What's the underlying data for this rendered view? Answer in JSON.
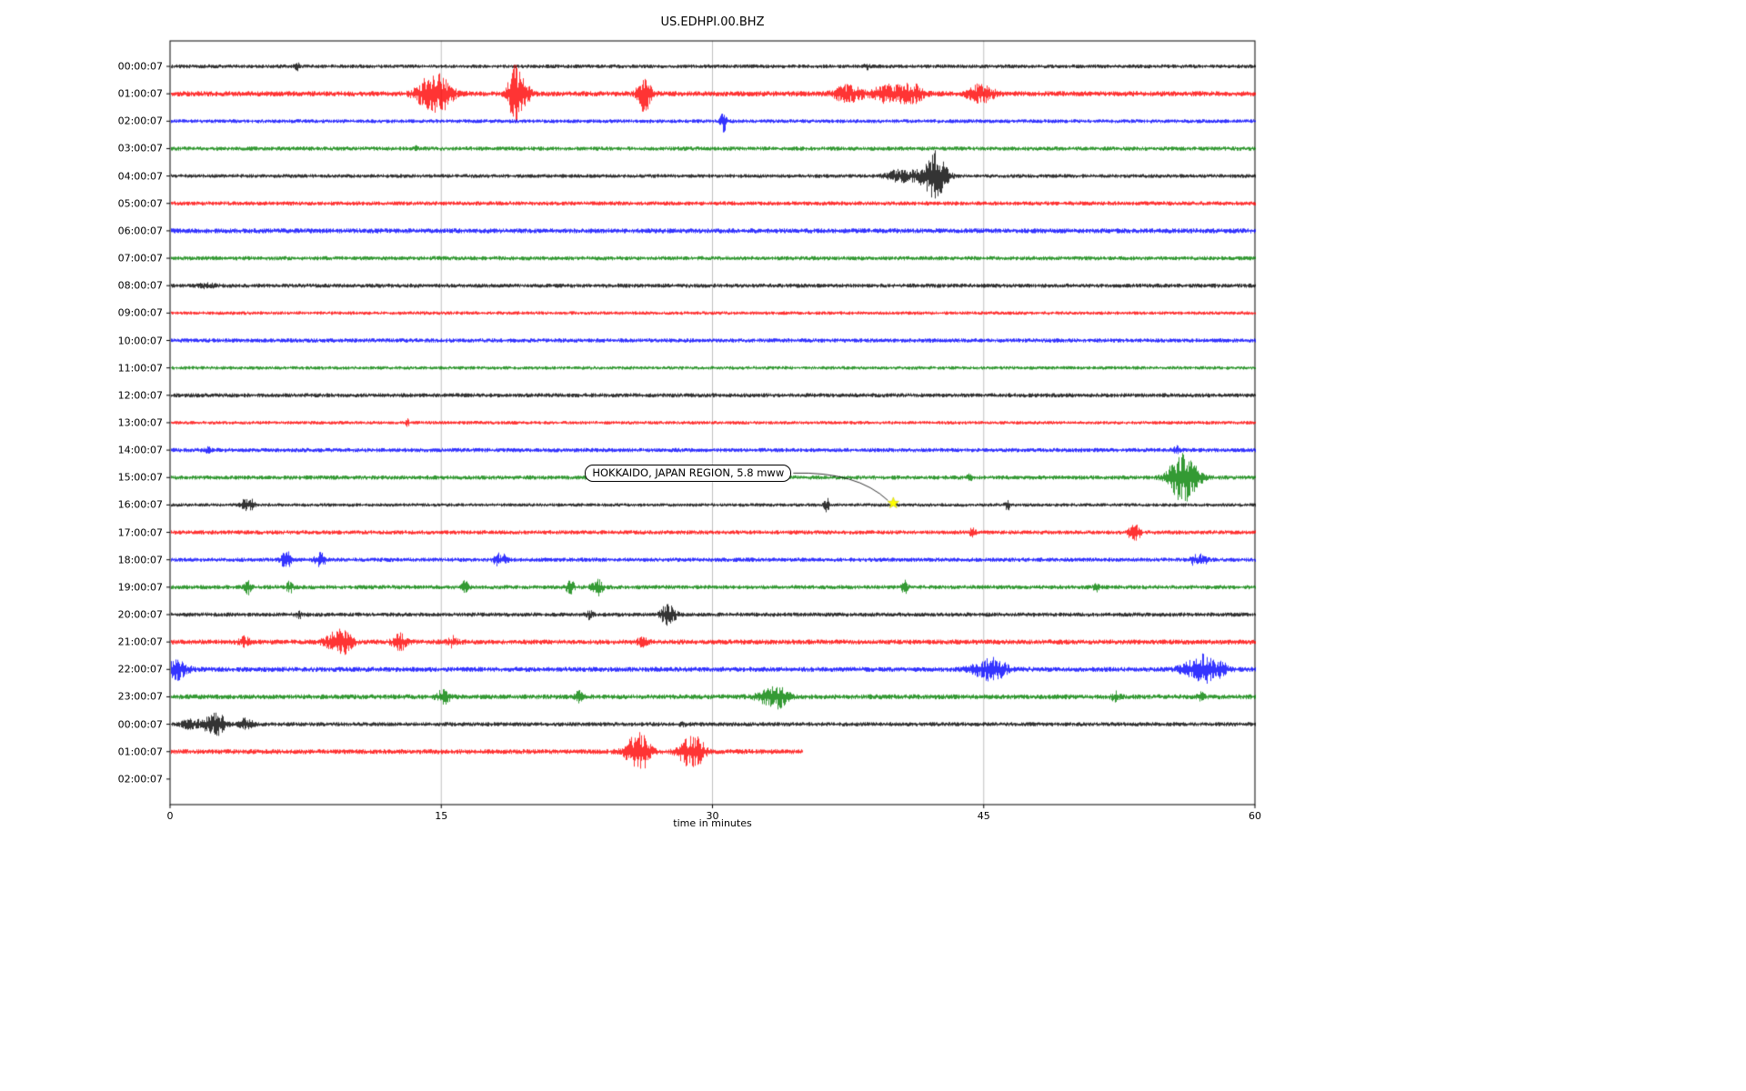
{
  "title": "US.EDHPI.00.BHZ",
  "chart_data": {
    "type": "line",
    "title": "US.EDHPI.00.BHZ",
    "subtitle": "",
    "xlabel": "time in minutes",
    "ylabel": "",
    "xlim": [
      0,
      60
    ],
    "xticks": [
      "0",
      "15",
      "30",
      "45",
      "60"
    ],
    "xtick_values": [
      0,
      15,
      30,
      45,
      60
    ],
    "grid": "vertical-only",
    "colors_cycle": [
      "#000000",
      "#ff0000",
      "#0000ff",
      "#008000"
    ],
    "event_marker": {
      "annotation": "HOKKAIDO, JAPAN REGION, 5.8 mww",
      "row_index": 16,
      "row_label": "16:00:07",
      "minute": 40,
      "symbol": "star",
      "color": "#ffff00"
    },
    "rows": [
      {
        "label": "00:00:07",
        "color": "#000000",
        "base_noise": 2.2,
        "end_minute": 60,
        "blank": false,
        "events": [
          {
            "m": 7.0,
            "a": 5,
            "w": 0.08
          },
          {
            "m": 38.5,
            "a": 3,
            "w": 0.1
          }
        ]
      },
      {
        "label": "01:00:07",
        "color": "#ff0000",
        "base_noise": 3.0,
        "end_minute": 60,
        "blank": false,
        "events": [
          {
            "m": 14.3,
            "a": 16,
            "w": 0.5
          },
          {
            "m": 15.1,
            "a": 14,
            "w": 0.4
          },
          {
            "m": 19.0,
            "a": 28,
            "w": 0.25
          },
          {
            "m": 19.5,
            "a": 12,
            "w": 0.3
          },
          {
            "m": 26.2,
            "a": 20,
            "w": 0.25
          },
          {
            "m": 37.5,
            "a": 8,
            "w": 0.6
          },
          {
            "m": 39.5,
            "a": 9,
            "w": 0.4
          },
          {
            "m": 40.6,
            "a": 9,
            "w": 0.4
          },
          {
            "m": 41.3,
            "a": 6,
            "w": 0.3
          },
          {
            "m": 44.8,
            "a": 9,
            "w": 0.5
          }
        ]
      },
      {
        "label": "02:00:07",
        "color": "#0000ff",
        "base_noise": 2.2,
        "end_minute": 60,
        "blank": false,
        "events": [
          {
            "m": 30.6,
            "a": 11,
            "w": 0.12
          }
        ]
      },
      {
        "label": "03:00:07",
        "color": "#008000",
        "base_noise": 2.4,
        "end_minute": 60,
        "blank": false,
        "events": [
          {
            "m": 13.6,
            "a": 3,
            "w": 0.1
          }
        ]
      },
      {
        "label": "04:00:07",
        "color": "#000000",
        "base_noise": 2.2,
        "end_minute": 60,
        "blank": false,
        "events": [
          {
            "m": 40.3,
            "a": 6,
            "w": 0.5
          },
          {
            "m": 41.6,
            "a": 8,
            "w": 0.4
          },
          {
            "m": 42.2,
            "a": 22,
            "w": 0.25
          },
          {
            "m": 42.7,
            "a": 12,
            "w": 0.3
          }
        ]
      },
      {
        "label": "05:00:07",
        "color": "#ff0000",
        "base_noise": 2.4,
        "end_minute": 60,
        "blank": false,
        "events": []
      },
      {
        "label": "06:00:07",
        "color": "#0000ff",
        "base_noise": 2.8,
        "end_minute": 60,
        "blank": false,
        "events": []
      },
      {
        "label": "07:00:07",
        "color": "#008000",
        "base_noise": 2.4,
        "end_minute": 60,
        "blank": false,
        "events": []
      },
      {
        "label": "08:00:07",
        "color": "#000000",
        "base_noise": 2.4,
        "end_minute": 60,
        "blank": false,
        "events": [
          {
            "m": 2.0,
            "a": 2,
            "w": 0.3
          }
        ]
      },
      {
        "label": "09:00:07",
        "color": "#ff0000",
        "base_noise": 2.0,
        "end_minute": 60,
        "blank": false,
        "events": []
      },
      {
        "label": "10:00:07",
        "color": "#0000ff",
        "base_noise": 2.4,
        "end_minute": 60,
        "blank": false,
        "events": []
      },
      {
        "label": "11:00:07",
        "color": "#008000",
        "base_noise": 2.0,
        "end_minute": 60,
        "blank": false,
        "events": []
      },
      {
        "label": "12:00:07",
        "color": "#000000",
        "base_noise": 2.4,
        "end_minute": 60,
        "blank": false,
        "events": []
      },
      {
        "label": "13:00:07",
        "color": "#ff0000",
        "base_noise": 2.0,
        "end_minute": 60,
        "blank": false,
        "events": [
          {
            "m": 13.1,
            "a": 3,
            "w": 0.08
          }
        ]
      },
      {
        "label": "14:00:07",
        "color": "#0000ff",
        "base_noise": 2.4,
        "end_minute": 60,
        "blank": false,
        "events": [
          {
            "m": 2.1,
            "a": 3,
            "w": 0.1
          },
          {
            "m": 55.6,
            "a": 4,
            "w": 0.12
          }
        ]
      },
      {
        "label": "15:00:07",
        "color": "#008000",
        "base_noise": 2.4,
        "end_minute": 60,
        "blank": false,
        "events": [
          {
            "m": 44.2,
            "a": 3,
            "w": 0.1
          },
          {
            "m": 55.6,
            "a": 14,
            "w": 0.4
          },
          {
            "m": 56.1,
            "a": 20,
            "w": 0.3
          },
          {
            "m": 56.7,
            "a": 10,
            "w": 0.3
          }
        ]
      },
      {
        "label": "16:00:07",
        "color": "#000000",
        "base_noise": 2.0,
        "end_minute": 60,
        "blank": false,
        "events": [
          {
            "m": 4.1,
            "a": 6,
            "w": 0.15
          },
          {
            "m": 4.5,
            "a": 5,
            "w": 0.12
          },
          {
            "m": 36.3,
            "a": 7,
            "w": 0.1
          },
          {
            "m": 46.3,
            "a": 5,
            "w": 0.1
          }
        ]
      },
      {
        "label": "17:00:07",
        "color": "#ff0000",
        "base_noise": 2.4,
        "end_minute": 60,
        "blank": false,
        "events": [
          {
            "m": 44.4,
            "a": 5,
            "w": 0.12
          },
          {
            "m": 53.2,
            "a": 9,
            "w": 0.15
          },
          {
            "m": 53.5,
            "a": 6,
            "w": 0.12
          }
        ]
      },
      {
        "label": "18:00:07",
        "color": "#0000ff",
        "base_noise": 2.4,
        "end_minute": 60,
        "blank": false,
        "events": [
          {
            "m": 6.4,
            "a": 9,
            "w": 0.2
          },
          {
            "m": 8.3,
            "a": 7,
            "w": 0.2
          },
          {
            "m": 18.1,
            "a": 6,
            "w": 0.15
          },
          {
            "m": 18.5,
            "a": 5,
            "w": 0.12
          },
          {
            "m": 56.6,
            "a": 5,
            "w": 0.12
          },
          {
            "m": 57.1,
            "a": 7,
            "w": 0.15
          }
        ]
      },
      {
        "label": "19:00:07",
        "color": "#008000",
        "base_noise": 2.4,
        "end_minute": 60,
        "blank": false,
        "events": [
          {
            "m": 4.3,
            "a": 8,
            "w": 0.12
          },
          {
            "m": 6.6,
            "a": 6,
            "w": 0.12
          },
          {
            "m": 16.3,
            "a": 7,
            "w": 0.12
          },
          {
            "m": 22.1,
            "a": 8,
            "w": 0.15
          },
          {
            "m": 23.6,
            "a": 10,
            "w": 0.2
          },
          {
            "m": 40.6,
            "a": 7,
            "w": 0.12
          },
          {
            "m": 51.2,
            "a": 4,
            "w": 0.1
          }
        ]
      },
      {
        "label": "20:00:07",
        "color": "#000000",
        "base_noise": 2.4,
        "end_minute": 60,
        "blank": false,
        "events": [
          {
            "m": 7.1,
            "a": 4,
            "w": 0.1
          },
          {
            "m": 23.2,
            "a": 5,
            "w": 0.1
          },
          {
            "m": 27.4,
            "a": 10,
            "w": 0.2
          },
          {
            "m": 27.8,
            "a": 7,
            "w": 0.15
          }
        ]
      },
      {
        "label": "21:00:07",
        "color": "#ff0000",
        "base_noise": 2.8,
        "end_minute": 60,
        "blank": false,
        "events": [
          {
            "m": 4.1,
            "a": 5,
            "w": 0.2
          },
          {
            "m": 9.1,
            "a": 10,
            "w": 0.4
          },
          {
            "m": 9.7,
            "a": 8,
            "w": 0.3
          },
          {
            "m": 12.7,
            "a": 8,
            "w": 0.3
          },
          {
            "m": 15.6,
            "a": 5,
            "w": 0.2
          },
          {
            "m": 26.1,
            "a": 4,
            "w": 0.2
          }
        ]
      },
      {
        "label": "22:00:07",
        "color": "#0000ff",
        "base_noise": 2.8,
        "end_minute": 60,
        "blank": false,
        "events": [
          {
            "m": 0.4,
            "a": 10,
            "w": 0.4
          },
          {
            "m": 45.1,
            "a": 8,
            "w": 0.6
          },
          {
            "m": 45.7,
            "a": 7,
            "w": 0.4
          },
          {
            "m": 56.6,
            "a": 9,
            "w": 0.5
          },
          {
            "m": 57.3,
            "a": 12,
            "w": 0.3
          },
          {
            "m": 58.1,
            "a": 7,
            "w": 0.3
          }
        ]
      },
      {
        "label": "23:00:07",
        "color": "#008000",
        "base_noise": 2.8,
        "end_minute": 60,
        "blank": false,
        "events": [
          {
            "m": 15.1,
            "a": 7,
            "w": 0.25
          },
          {
            "m": 22.6,
            "a": 5,
            "w": 0.15
          },
          {
            "m": 33.2,
            "a": 8,
            "w": 0.5
          },
          {
            "m": 33.8,
            "a": 7,
            "w": 0.3
          },
          {
            "m": 52.3,
            "a": 5,
            "w": 0.15
          },
          {
            "m": 57.0,
            "a": 4,
            "w": 0.12
          }
        ]
      },
      {
        "label": "00:00:07",
        "color": "#000000",
        "base_noise": 2.4,
        "end_minute": 60,
        "blank": false,
        "events": [
          {
            "m": 1.1,
            "a": 5,
            "w": 0.3
          },
          {
            "m": 2.2,
            "a": 7,
            "w": 0.4
          },
          {
            "m": 2.7,
            "a": 8,
            "w": 0.25
          },
          {
            "m": 4.2,
            "a": 6,
            "w": 0.25
          },
          {
            "m": 28.3,
            "a": 3,
            "w": 0.1
          }
        ]
      },
      {
        "label": "01:00:07",
        "color": "#ff0000",
        "base_noise": 2.8,
        "end_minute": 35,
        "blank": false,
        "events": [
          {
            "m": 25.6,
            "a": 11,
            "w": 0.4
          },
          {
            "m": 26.1,
            "a": 14,
            "w": 0.35
          },
          {
            "m": 28.6,
            "a": 13,
            "w": 0.4
          },
          {
            "m": 29.2,
            "a": 10,
            "w": 0.3
          }
        ]
      },
      {
        "label": "02:00:07",
        "color": "#008000",
        "base_noise": 0,
        "end_minute": 0,
        "blank": true,
        "events": []
      }
    ]
  }
}
